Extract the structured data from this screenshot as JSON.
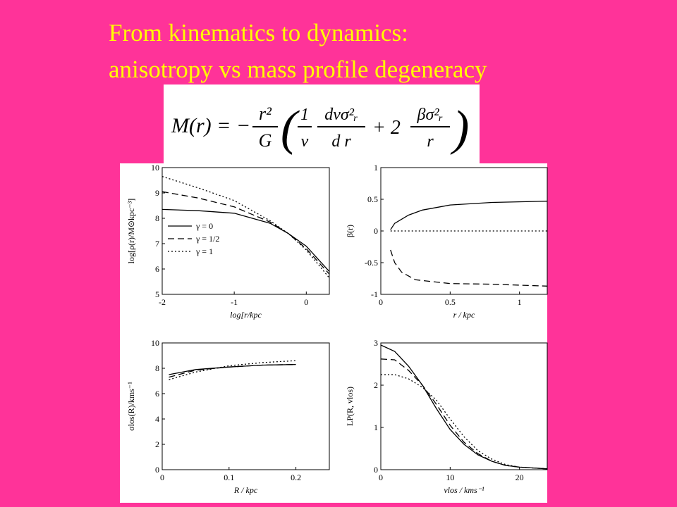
{
  "title_lines": [
    "From kinematics to dynamics:",
    "anisotropy vs mass profile degeneracy"
  ],
  "equation": {
    "lhs": "M(r) = −",
    "f1_num": "r²",
    "f1_den": "G",
    "f2_num": "1",
    "f2_den": "ν",
    "f3_num": "dνσ²ᵣ",
    "f3_den": "d r",
    "plus": "+ 2",
    "f4_num": "βσ²ᵣ",
    "f4_den": "r"
  },
  "chart_data": [
    {
      "type": "line",
      "xlabel": "log[r/kpc",
      "ylabel": "log[ρ(r)/M⊙kpc⁻³]",
      "xlim": [
        -2,
        0.32
      ],
      "xticks": [
        -2,
        -1,
        0
      ],
      "ylim": [
        5,
        10
      ],
      "yticks": [
        5,
        6,
        7,
        8,
        9,
        10
      ],
      "legend": "center left",
      "series": [
        {
          "name": "γ = 0",
          "color": "#000000",
          "style": "solid",
          "x": [
            -2,
            -1.5,
            -1,
            -0.5,
            -0.25,
            0,
            0.32
          ],
          "values": [
            8.35,
            8.3,
            8.2,
            7.8,
            7.4,
            6.9,
            5.9
          ]
        },
        {
          "name": "γ = 1/2",
          "color": "#000000",
          "style": "dashed",
          "x": [
            -2,
            -1.5,
            -1,
            -0.5,
            -0.25,
            0,
            0.32
          ],
          "values": [
            9.05,
            8.8,
            8.45,
            7.85,
            7.4,
            6.8,
            5.8
          ]
        },
        {
          "name": "γ = 1",
          "color": "#000000",
          "style": "dotted",
          "x": [
            -2,
            -1.5,
            -1,
            -0.5,
            -0.25,
            0,
            0.32
          ],
          "values": [
            9.65,
            9.2,
            8.7,
            7.9,
            7.4,
            6.75,
            5.65
          ]
        }
      ]
    },
    {
      "type": "line",
      "xlabel": "r / kpc",
      "ylabel": "β(r)",
      "xlim": [
        0,
        1.2
      ],
      "xticks": [
        0,
        0.5,
        1
      ],
      "ylim": [
        -1,
        1
      ],
      "yticks": [
        -1,
        -0.5,
        0,
        0.5,
        1
      ],
      "series": [
        {
          "color": "#000000",
          "style": "solid",
          "x": [
            0.07,
            0.1,
            0.2,
            0.3,
            0.5,
            0.8,
            1.2
          ],
          "values": [
            0.02,
            0.12,
            0.25,
            0.33,
            0.41,
            0.45,
            0.47
          ]
        },
        {
          "color": "#000000",
          "style": "dashed",
          "x": [
            0.07,
            0.1,
            0.15,
            0.25,
            0.5,
            0.8,
            1.2
          ],
          "values": [
            -0.3,
            -0.5,
            -0.65,
            -0.77,
            -0.83,
            -0.84,
            -0.87
          ]
        },
        {
          "color": "#000000",
          "style": "dotted",
          "x": [
            0.07,
            1.2
          ],
          "values": [
            0,
            0
          ]
        }
      ]
    },
    {
      "type": "line",
      "xlabel": "R / kpc",
      "ylabel": "σlos(R)/kms⁻¹",
      "xlim": [
        0,
        0.25
      ],
      "xticks": [
        0,
        0.1,
        0.2
      ],
      "ylim": [
        0,
        10
      ],
      "yticks": [
        0,
        2,
        4,
        6,
        8,
        10
      ],
      "series": [
        {
          "color": "#000000",
          "style": "solid",
          "x": [
            0.01,
            0.05,
            0.1,
            0.15,
            0.2
          ],
          "values": [
            7.5,
            7.9,
            8.1,
            8.25,
            8.3
          ]
        },
        {
          "color": "#000000",
          "style": "dashed",
          "x": [
            0.01,
            0.05,
            0.1,
            0.15,
            0.2
          ],
          "values": [
            7.3,
            7.85,
            8.1,
            8.25,
            8.3
          ]
        },
        {
          "color": "#000000",
          "style": "dotted",
          "x": [
            0.01,
            0.05,
            0.1,
            0.15,
            0.2
          ],
          "values": [
            7.1,
            7.7,
            8.2,
            8.45,
            8.6
          ]
        }
      ]
    },
    {
      "type": "line",
      "xlabel": "vlos / kms⁻¹",
      "ylabel": "LP(R, vlos)",
      "xlim": [
        0,
        24
      ],
      "xticks": [
        0,
        10,
        20
      ],
      "ylim": [
        0,
        3
      ],
      "yticks": [
        0,
        1,
        2,
        3
      ],
      "series": [
        {
          "color": "#000000",
          "style": "solid",
          "x": [
            0,
            2,
            4,
            6,
            8,
            10,
            12,
            14,
            16,
            18,
            20,
            24
          ],
          "values": [
            2.95,
            2.8,
            2.45,
            2.0,
            1.45,
            0.95,
            0.6,
            0.35,
            0.2,
            0.1,
            0.06,
            0.02
          ]
        },
        {
          "color": "#000000",
          "style": "dashed",
          "x": [
            0,
            2,
            4,
            6,
            8,
            10,
            12,
            14,
            16,
            18,
            20,
            24
          ],
          "values": [
            2.62,
            2.6,
            2.35,
            2.0,
            1.55,
            1.05,
            0.65,
            0.38,
            0.2,
            0.1,
            0.06,
            0.02
          ]
        },
        {
          "color": "#000000",
          "style": "dotted",
          "x": [
            0,
            2,
            4,
            6,
            8,
            10,
            12,
            14,
            16,
            18,
            20,
            24
          ],
          "values": [
            2.25,
            2.25,
            2.15,
            1.95,
            1.65,
            1.2,
            0.78,
            0.45,
            0.25,
            0.12,
            0.06,
            0.02
          ]
        }
      ]
    }
  ]
}
